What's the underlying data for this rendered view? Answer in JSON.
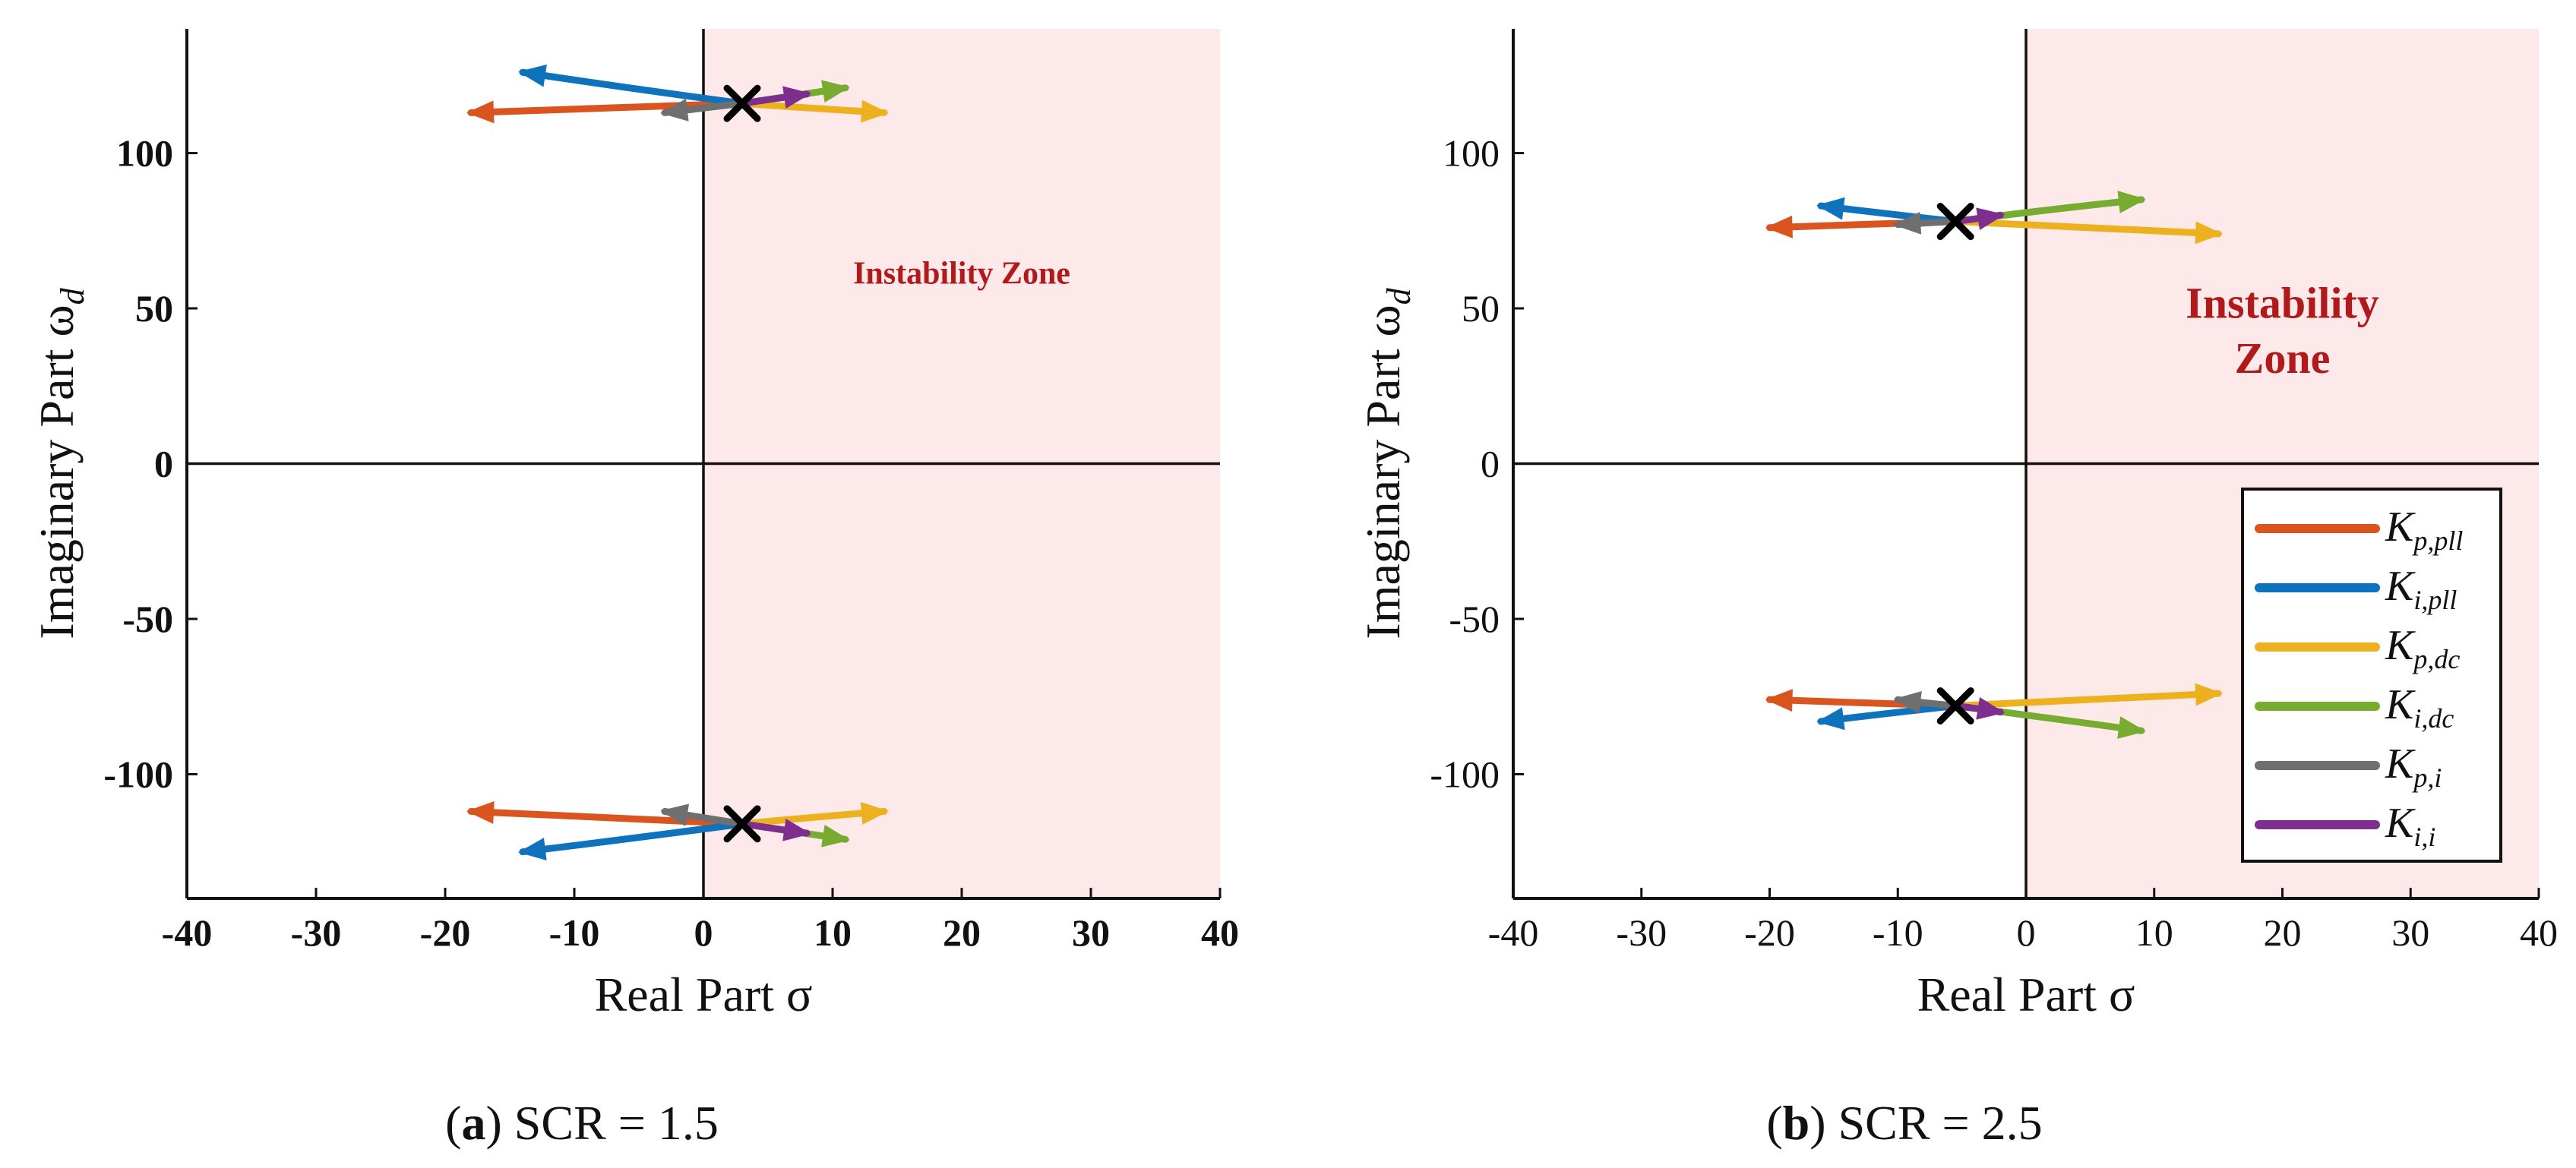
{
  "colors": {
    "instability_zone": "#fde9ea",
    "axis": "#111111",
    "marker": "#000000",
    "zone_text": "#b01a1a"
  },
  "legend": [
    {
      "key": "Kp_pll",
      "main": "K",
      "sub": "p,pll",
      "color": "#d9541e"
    },
    {
      "key": "Ki_pll",
      "main": "K",
      "sub": "i,pll",
      "color": "#0f72bd"
    },
    {
      "key": "Kp_dc",
      "main": "K",
      "sub": "p,dc",
      "color": "#edb120"
    },
    {
      "key": "Ki_dc",
      "main": "K",
      "sub": "i,dc",
      "color": "#77ac30"
    },
    {
      "key": "Kp_i",
      "main": "K",
      "sub": "p,i",
      "color": "#6f6f6f"
    },
    {
      "key": "Ki_i",
      "main": "K",
      "sub": "i,i",
      "color": "#7e2f8e"
    }
  ],
  "chart_data": [
    {
      "type": "line",
      "panel": "a",
      "caption_tag": "a",
      "caption_text": ") SCR = 1.5",
      "xlabel": "Real Part σ",
      "ylabel_main": "Imaginary Part ω",
      "ylabel_sub": "d",
      "xlim": [
        -40,
        40
      ],
      "ylim": [
        -140,
        140
      ],
      "xticks": [
        -40,
        -30,
        -20,
        -10,
        0,
        10,
        20,
        30,
        40
      ],
      "yticks": [
        100,
        50,
        0,
        -50,
        -100
      ],
      "instability_zone": {
        "x_from": 0,
        "x_to": 40,
        "label_lines": [
          "Instability Zone"
        ],
        "label_x": 20,
        "label_y": 58
      },
      "base_points": [
        {
          "x": 3,
          "y": 116
        },
        {
          "x": 3,
          "y": -116
        }
      ],
      "series": [
        {
          "key": "Kp_pll",
          "paths": [
            [
              [
                3,
                116
              ],
              [
                -8,
                114.5
              ],
              [
                -18,
                113
              ]
            ],
            [
              [
                3,
                -116
              ],
              [
                -8,
                -114
              ],
              [
                -18,
                -112
              ]
            ]
          ]
        },
        {
          "key": "Ki_pll",
          "paths": [
            [
              [
                3,
                116
              ],
              [
                -6,
                121
              ],
              [
                -14,
                126
              ]
            ],
            [
              [
                3,
                -116
              ],
              [
                -6,
                -121
              ],
              [
                -14,
                -125
              ]
            ]
          ]
        },
        {
          "key": "Kp_dc",
          "paths": [
            [
              [
                3,
                116
              ],
              [
                8,
                114.5
              ],
              [
                14,
                113
              ]
            ],
            [
              [
                3,
                -116
              ],
              [
                8,
                -114
              ],
              [
                14,
                -112
              ]
            ]
          ]
        },
        {
          "key": "Ki_dc",
          "paths": [
            [
              [
                3,
                116
              ],
              [
                7,
                118.5
              ],
              [
                11,
                121
              ]
            ],
            [
              [
                3,
                -116
              ],
              [
                7,
                -118.5
              ],
              [
                11,
                -121
              ]
            ]
          ]
        },
        {
          "key": "Kp_i",
          "paths": [
            [
              [
                3,
                116
              ],
              [
                0,
                114.5
              ],
              [
                -3,
                113
              ]
            ],
            [
              [
                3,
                -116
              ],
              [
                0,
                -114
              ],
              [
                -3,
                -112
              ]
            ]
          ]
        },
        {
          "key": "Ki_i",
          "paths": [
            [
              [
                3,
                116
              ],
              [
                5.5,
                117.5
              ],
              [
                8,
                119
              ]
            ],
            [
              [
                3,
                -116
              ],
              [
                5.5,
                -117.5
              ],
              [
                8,
                -119
              ]
            ]
          ]
        }
      ]
    },
    {
      "type": "line",
      "panel": "b",
      "caption_tag": "b",
      "caption_text": ") SCR = 2.5",
      "xlabel": "Real Part σ",
      "ylabel_main": "Imaginary Part ω",
      "ylabel_sub": "d",
      "xlim": [
        -40,
        40
      ],
      "ylim": [
        -140,
        140
      ],
      "xticks": [
        -40,
        -30,
        -20,
        -10,
        0,
        10,
        20,
        30,
        40
      ],
      "yticks": [
        100,
        50,
        0,
        -50,
        -100
      ],
      "instability_zone": {
        "x_from": 0,
        "x_to": 40,
        "label_lines": [
          "Instability",
          "Zone"
        ],
        "label_x": 20,
        "label_y": 47
      },
      "base_points": [
        {
          "x": -5.5,
          "y": 78
        },
        {
          "x": -5.5,
          "y": -78
        }
      ],
      "series": [
        {
          "key": "Kp_pll",
          "paths": [
            [
              [
                -5.5,
                78
              ],
              [
                -12,
                77
              ],
              [
                -20,
                76
              ]
            ],
            [
              [
                -5.5,
                -78
              ],
              [
                -12,
                -77
              ],
              [
                -20,
                -76
              ]
            ]
          ]
        },
        {
          "key": "Ki_pll",
          "paths": [
            [
              [
                -5.5,
                78
              ],
              [
                -11,
                80.5
              ],
              [
                -16,
                83
              ]
            ],
            [
              [
                -5.5,
                -78
              ],
              [
                -11,
                -80.5
              ],
              [
                -16,
                -83
              ]
            ]
          ]
        },
        {
          "key": "Kp_dc",
          "paths": [
            [
              [
                -5.5,
                78
              ],
              [
                5,
                76
              ],
              [
                15,
                74
              ]
            ],
            [
              [
                -5.5,
                -78
              ],
              [
                5,
                -76
              ],
              [
                15,
                -74
              ]
            ]
          ]
        },
        {
          "key": "Ki_dc",
          "paths": [
            [
              [
                -5.5,
                78
              ],
              [
                2,
                82
              ],
              [
                9,
                85
              ]
            ],
            [
              [
                -5.5,
                -78
              ],
              [
                2,
                -82
              ],
              [
                9,
                -86
              ]
            ]
          ]
        },
        {
          "key": "Kp_i",
          "paths": [
            [
              [
                -5.5,
                78
              ],
              [
                -8,
                77.5
              ],
              [
                -10,
                77
              ]
            ],
            [
              [
                -5.5,
                -78
              ],
              [
                -8,
                -77
              ],
              [
                -10,
                -76
              ]
            ]
          ]
        },
        {
          "key": "Ki_i",
          "paths": [
            [
              [
                -5.5,
                78
              ],
              [
                -3.5,
                79
              ],
              [
                -2,
                80
              ]
            ],
            [
              [
                -5.5,
                -78
              ],
              [
                -3.5,
                -79
              ],
              [
                -2,
                -80
              ]
            ]
          ]
        }
      ]
    }
  ]
}
